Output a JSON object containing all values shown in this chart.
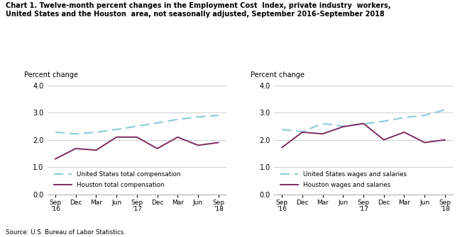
{
  "x_labels": [
    "Sep\n'16",
    "Dec",
    "Mar",
    "Jun",
    "Sep\n'17",
    "Dec",
    "Mar",
    "Jun",
    "Sep\n'18"
  ],
  "x_positions": [
    0,
    1,
    2,
    3,
    4,
    5,
    6,
    7,
    8
  ],
  "chart1": {
    "us_total_comp": [
      2.28,
      2.22,
      2.28,
      2.38,
      2.5,
      2.62,
      2.75,
      2.84,
      2.9
    ],
    "houston_total_comp": [
      1.3,
      1.68,
      1.62,
      2.1,
      2.1,
      1.68,
      2.1,
      1.8,
      1.9
    ],
    "legend1": "United States total compensation",
    "legend2": "Houston total compensation"
  },
  "chart2": {
    "us_wages_salaries": [
      2.38,
      2.3,
      2.6,
      2.5,
      2.58,
      2.68,
      2.82,
      2.9,
      3.1
    ],
    "houston_wages_salaries": [
      1.72,
      2.28,
      2.22,
      2.48,
      2.6,
      2.0,
      2.28,
      1.9,
      2.0
    ],
    "legend1": "United States wages and salaries",
    "legend2": "Houston wages and salaries"
  },
  "us_line_color": "#92CDDC",
  "houston_line_color": "#7B2D5E",
  "ylabel": "Percent change",
  "ylim": [
    0.0,
    4.0
  ],
  "yticks": [
    0.0,
    1.0,
    2.0,
    3.0,
    4.0
  ],
  "title_line1": "Chart 1. Twelve-month percent changes in the Employment Cost  Index, private industry  workers,",
  "title_line2": "United States and the Houston  area, not seasonally adjusted, September 2016–September 2018",
  "source": "Source: U.S. Bureau of Labor Statistics.",
  "grid_color": "#C8C8C8",
  "background_color": "#FFFFFF"
}
